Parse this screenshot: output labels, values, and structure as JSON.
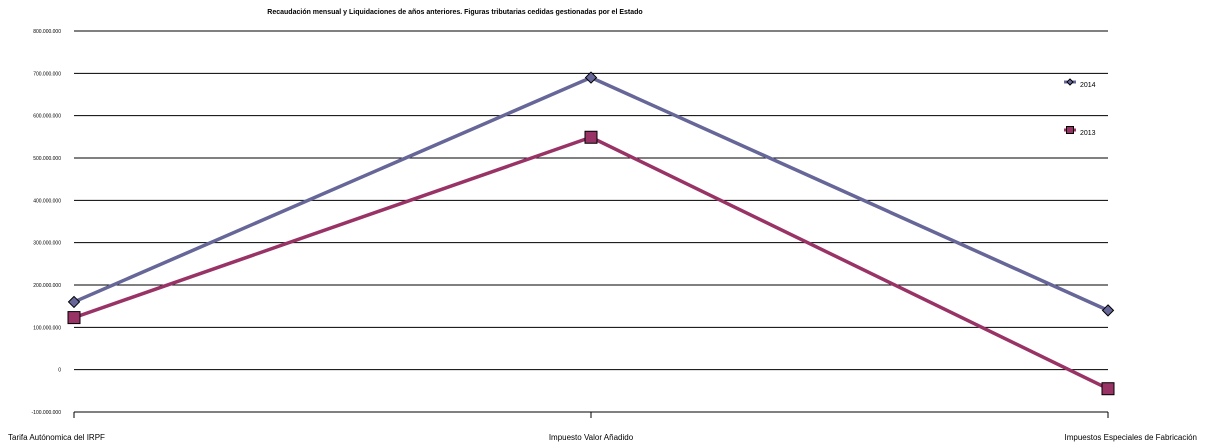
{
  "chart_data": {
    "type": "line",
    "title": "Recaudación mensual y Liquidaciones de años anteriores. Figuras tributarias cedidas gestionadas por el Estado",
    "categories": [
      "Tarifa Autónomica del IRPF",
      "Impuesto Valor Añadido",
      "Impuestos Especiales de Fabricación"
    ],
    "ylim": [
      -100000000,
      800000000
    ],
    "yticks": [
      -100000000,
      0,
      100000000,
      200000000,
      300000000,
      400000000,
      500000000,
      600000000,
      700000000,
      800000000
    ],
    "ytick_labels": [
      "-100.000.000",
      "0",
      "100.000.000",
      "200.000.000",
      "300.000.000",
      "400.000.000",
      "500.000.000",
      "600.000.000",
      "700.000.000",
      "800.000.000"
    ],
    "grid": true,
    "legend_position": "top-right",
    "series": [
      {
        "name": "2014",
        "values": [
          160000000,
          690000000,
          140000000
        ],
        "color": "#666699",
        "marker": "diamond"
      },
      {
        "name": "2013",
        "values": [
          123000000,
          549000000,
          -45000000
        ],
        "color": "#993366",
        "marker": "square"
      }
    ]
  }
}
